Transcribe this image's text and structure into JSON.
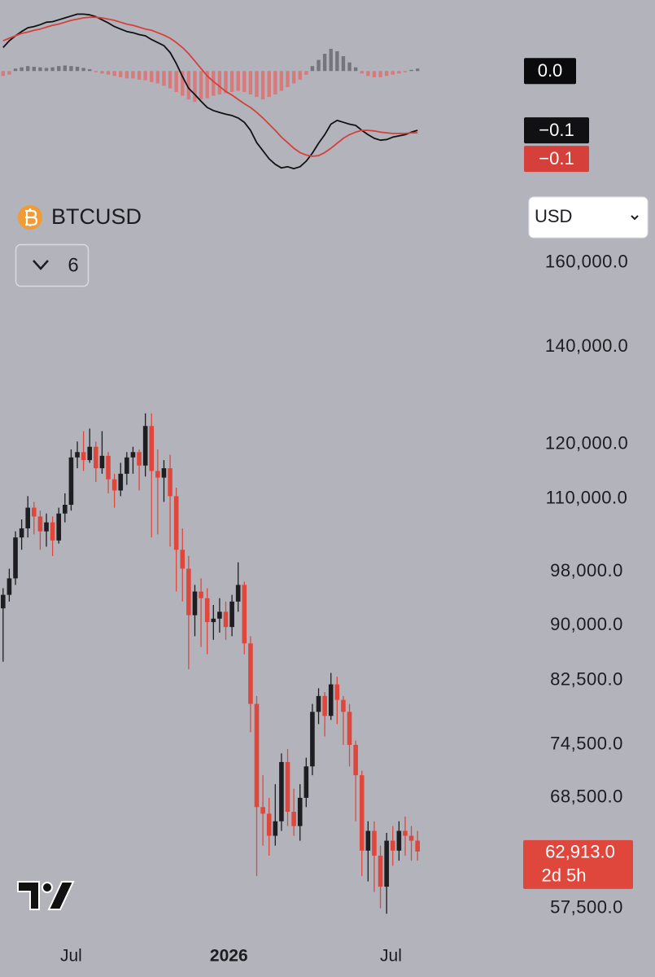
{
  "header": {
    "symbol": "BTCUSD",
    "interval": "6",
    "currency": "USD"
  },
  "chart_data": [
    {
      "type": "macd",
      "xlim": [
        -0.5,
        80
      ],
      "ylim": [
        -0.175,
        0.115
      ],
      "yticks": [
        {
          "value": 0,
          "label": "0.0"
        }
      ],
      "zero_label_color": "#0a0a0c",
      "series": [
        {
          "color": "#111114",
          "last_value_label": "−0.1",
          "values": [
            0.038,
            0.049,
            0.057,
            0.064,
            0.07,
            0.072,
            0.075,
            0.079,
            0.08,
            0.083,
            0.086,
            0.089,
            0.092,
            0.092,
            0.091,
            0.088,
            0.083,
            0.078,
            0.072,
            0.068,
            0.064,
            0.062,
            0.059,
            0.057,
            0.051,
            0.046,
            0.041,
            0.03,
            0.012,
            -0.009,
            -0.028,
            -0.038,
            -0.049,
            -0.059,
            -0.064,
            -0.067,
            -0.07,
            -0.072,
            -0.076,
            -0.083,
            -0.096,
            -0.116,
            -0.129,
            -0.142,
            -0.151,
            -0.157,
            -0.155,
            -0.158,
            -0.155,
            -0.146,
            -0.133,
            -0.117,
            -0.103,
            -0.086,
            -0.08,
            -0.083,
            -0.086,
            -0.088,
            -0.096,
            -0.103,
            -0.109,
            -0.112,
            -0.111,
            -0.107,
            -0.105,
            -0.103,
            -0.099,
            -0.096
          ]
        },
        {
          "color": "#d6403a",
          "last_value_label": "−0.1",
          "values": [
            0.049,
            0.053,
            0.057,
            0.061,
            0.063,
            0.066,
            0.068,
            0.071,
            0.074,
            0.076,
            0.079,
            0.082,
            0.084,
            0.086,
            0.087,
            0.087,
            0.086,
            0.084,
            0.082,
            0.079,
            0.076,
            0.074,
            0.071,
            0.068,
            0.066,
            0.062,
            0.058,
            0.053,
            0.046,
            0.038,
            0.028,
            0.016,
            0.004,
            -0.008,
            -0.017,
            -0.025,
            -0.033,
            -0.039,
            -0.046,
            -0.053,
            -0.059,
            -0.067,
            -0.076,
            -0.086,
            -0.096,
            -0.107,
            -0.116,
            -0.125,
            -0.132,
            -0.136,
            -0.138,
            -0.137,
            -0.132,
            -0.125,
            -0.117,
            -0.109,
            -0.103,
            -0.099,
            -0.096,
            -0.096,
            -0.097,
            -0.099,
            -0.1,
            -0.101,
            -0.101,
            -0.101,
            -0.1,
            -0.1
          ]
        }
      ],
      "histogram": {
        "positive_color": "#74767e",
        "negative_color": "#d8797b",
        "values": [
          -0.008,
          -0.006,
          0.004,
          0.006,
          0.008,
          0.007,
          0.006,
          0.005,
          0.006,
          0.008,
          0.009,
          0.008,
          0.007,
          0.005,
          0.003,
          -0.002,
          -0.004,
          -0.006,
          -0.008,
          -0.01,
          -0.012,
          -0.012,
          -0.014,
          -0.015,
          -0.018,
          -0.02,
          -0.024,
          -0.028,
          -0.034,
          -0.04,
          -0.046,
          -0.05,
          -0.046,
          -0.044,
          -0.04,
          -0.038,
          -0.036,
          -0.034,
          -0.032,
          -0.034,
          -0.038,
          -0.042,
          -0.046,
          -0.042,
          -0.038,
          -0.032,
          -0.026,
          -0.02,
          -0.014,
          -0.006,
          0.008,
          0.018,
          0.028,
          0.036,
          0.032,
          0.024,
          0.014,
          0.006,
          -0.004,
          -0.008,
          -0.01,
          -0.01,
          -0.008,
          -0.006,
          -0.004,
          -0.002,
          0.002,
          0.004
        ]
      }
    },
    {
      "type": "candlestick",
      "log_scale": true,
      "grid": false,
      "up_color": "#1d1d22",
      "down_color": "#e0473c",
      "xlim": [
        -0.5,
        80
      ],
      "xticks": [
        {
          "value": 11,
          "label": "Jul"
        },
        {
          "value": 36.5,
          "label": "2026"
        },
        {
          "value": 62.7,
          "label": "Jul"
        }
      ],
      "ylim": [
        55000,
        178000
      ],
      "yticks": [
        {
          "value": 160000,
          "label": "160,000.0"
        },
        {
          "value": 140000,
          "label": "140,000.0"
        },
        {
          "value": 120000,
          "label": "120,000.0"
        },
        {
          "value": 110000,
          "label": "110,000.0"
        },
        {
          "value": 98000,
          "label": "98,000.0"
        },
        {
          "value": 90000,
          "label": "90,000.0"
        },
        {
          "value": 82500,
          "label": "82,500.0"
        },
        {
          "value": 74500,
          "label": "74,500.0"
        },
        {
          "value": 68500,
          "label": "68,500.0"
        },
        {
          "value": 57500,
          "label": "57,500.0"
        }
      ],
      "last_value_label": "62,913.0",
      "countdown": "2d 5h",
      "last_label_color": "#e0473c",
      "open": [
        92500,
        94500,
        97000,
        103500,
        105000,
        108500,
        107000,
        104500,
        106000,
        103000,
        107500,
        109000,
        117500,
        118500,
        117000,
        119500,
        115500,
        117800,
        113500,
        111500,
        114500,
        117500,
        118500,
        116000,
        123500,
        115000,
        113800,
        115500,
        110500,
        101500,
        98500,
        91500,
        95000,
        94000,
        90500,
        91000,
        92000,
        89800,
        93500,
        96000,
        87500,
        79500,
        67500,
        66800,
        64500,
        66000,
        72500,
        67000,
        65500,
        68500,
        72000,
        78500,
        80500,
        78000,
        82000,
        80000,
        78500,
        74500,
        71000,
        63000,
        65000,
        62500,
        59500,
        64000,
        63000,
        65000,
        64500,
        64000
      ],
      "high": [
        95500,
        98500,
        104500,
        106500,
        110500,
        109500,
        108000,
        107500,
        107000,
        108500,
        111000,
        119000,
        120500,
        122500,
        123000,
        120500,
        122500,
        118500,
        114500,
        116500,
        118500,
        119500,
        119000,
        126000,
        126000,
        119000,
        117000,
        118000,
        112000,
        105000,
        100500,
        96000,
        97000,
        95500,
        93000,
        94000,
        93500,
        94500,
        99500,
        96500,
        88500,
        80500,
        71000,
        68500,
        70000,
        73500,
        74000,
        69500,
        70000,
        73000,
        79500,
        81500,
        81000,
        83500,
        83000,
        80500,
        79500,
        75000,
        71500,
        66000,
        66000,
        63500,
        64800,
        65500,
        66000,
        66500,
        65500,
        65000
      ],
      "low": [
        85000,
        93500,
        96000,
        101500,
        103500,
        104000,
        101500,
        102000,
        100500,
        102500,
        106000,
        108000,
        115500,
        115000,
        116500,
        113000,
        114500,
        111000,
        108500,
        110500,
        112500,
        114500,
        111500,
        114000,
        103500,
        104000,
        109500,
        102000,
        95000,
        93500,
        84000,
        88500,
        87000,
        86000,
        88000,
        89000,
        88000,
        88500,
        92000,
        86000,
        76000,
        60500,
        63500,
        62500,
        63500,
        65000,
        65500,
        64500,
        64000,
        67500,
        71000,
        77000,
        75500,
        77500,
        77000,
        74500,
        72000,
        66000,
        60500,
        60000,
        59000,
        57500,
        57000,
        61500,
        62000,
        62500,
        62000,
        62000
      ],
      "close": [
        94500,
        97000,
        103500,
        105000,
        108500,
        107000,
        104500,
        106000,
        103000,
        107500,
        109000,
        117500,
        118500,
        117000,
        119500,
        115500,
        117800,
        113500,
        111500,
        114500,
        117500,
        118500,
        116000,
        123500,
        115000,
        113800,
        115500,
        110500,
        101500,
        98500,
        91500,
        95000,
        94000,
        90500,
        91000,
        92000,
        89800,
        93500,
        96000,
        87500,
        79500,
        67500,
        66800,
        64500,
        66000,
        72500,
        67000,
        65500,
        68500,
        72000,
        78500,
        80500,
        78000,
        82000,
        80000,
        78500,
        74500,
        71000,
        63000,
        65000,
        62500,
        59500,
        64000,
        63000,
        65000,
        64500,
        64000,
        62913
      ]
    }
  ]
}
